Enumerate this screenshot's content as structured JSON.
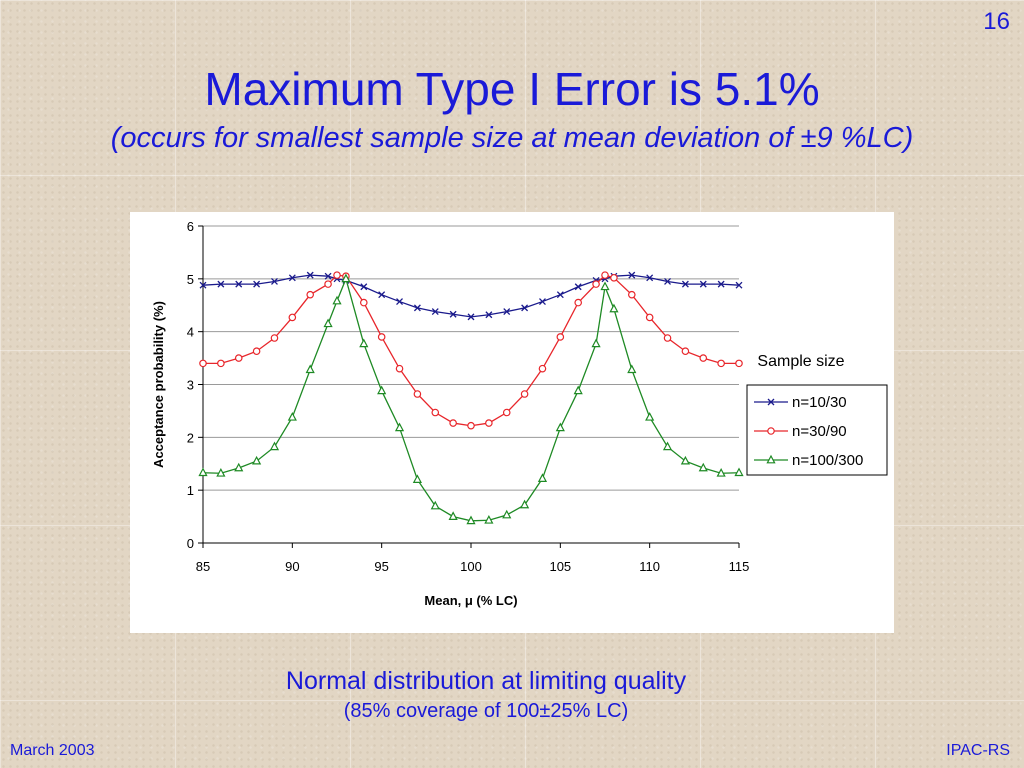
{
  "slide": {
    "number": "16",
    "title": "Maximum Type I Error is 5.1%",
    "subtitle": "(occurs for smallest sample size at mean deviation of ±9 %LC)",
    "caption": "Normal distribution at limiting quality",
    "caption_sub": "(85% coverage of 100±25% LC)",
    "footer_left": "March 2003",
    "footer_right": "IPAC-RS"
  },
  "chart_data": {
    "type": "line",
    "xlabel": "Mean, μ (% LC)",
    "ylabel": "Acceptance probability (%)",
    "xlim": [
      85,
      115
    ],
    "ylim": [
      0,
      6
    ],
    "xticks": [
      85,
      90,
      95,
      100,
      105,
      110,
      115
    ],
    "yticks": [
      0,
      1,
      2,
      3,
      4,
      5,
      6
    ],
    "grid": "horizontal",
    "legend_title": "Sample size",
    "legend_position": "right",
    "x": [
      85,
      86,
      87,
      88,
      89,
      90,
      91,
      92,
      92.5,
      93,
      94,
      95,
      96,
      97,
      98,
      99,
      100,
      101,
      102,
      103,
      104,
      105,
      106,
      107,
      107.5,
      108,
      109,
      110,
      111,
      112,
      113,
      114,
      115
    ],
    "series": [
      {
        "name": "n=10/30",
        "color": "#1a1a8c",
        "marker": "x",
        "values": [
          4.88,
          4.9,
          4.9,
          4.9,
          4.95,
          5.02,
          5.07,
          5.05,
          5.0,
          4.97,
          4.85,
          4.7,
          4.57,
          4.45,
          4.38,
          4.33,
          4.28,
          4.32,
          4.38,
          4.45,
          4.57,
          4.7,
          4.85,
          4.97,
          5.0,
          5.05,
          5.07,
          5.02,
          4.95,
          4.9,
          4.9,
          4.9,
          4.88
        ]
      },
      {
        "name": "n=30/90",
        "color": "#e8262b",
        "marker": "circle",
        "values": [
          3.4,
          3.4,
          3.5,
          3.63,
          3.88,
          4.27,
          4.7,
          4.9,
          5.07,
          5.05,
          4.55,
          3.9,
          3.3,
          2.82,
          2.47,
          2.27,
          2.22,
          2.27,
          2.47,
          2.82,
          3.3,
          3.9,
          4.55,
          4.9,
          5.07,
          5.02,
          4.7,
          4.27,
          3.88,
          3.63,
          3.5,
          3.4,
          3.4
        ]
      },
      {
        "name": "n=100/300",
        "color": "#1e8a24",
        "marker": "triangle",
        "values": [
          1.33,
          1.32,
          1.42,
          1.55,
          1.82,
          2.38,
          3.28,
          4.15,
          4.58,
          5.0,
          3.77,
          2.88,
          2.18,
          1.2,
          0.7,
          0.5,
          0.42,
          0.43,
          0.53,
          0.72,
          1.22,
          2.18,
          2.88,
          3.77,
          4.85,
          4.43,
          3.28,
          2.38,
          1.82,
          1.55,
          1.42,
          1.32,
          1.33
        ]
      }
    ]
  }
}
